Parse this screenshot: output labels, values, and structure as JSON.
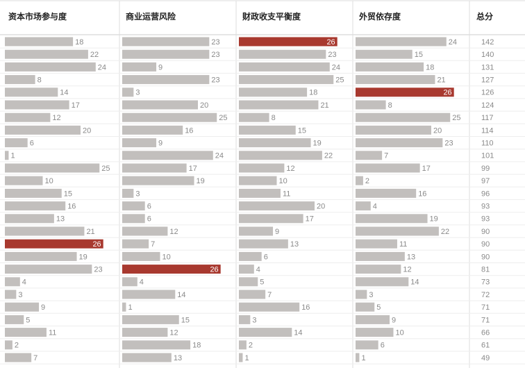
{
  "chart_data": {
    "type": "bar",
    "bar_color": "#c2bfbd",
    "highlight_color": "#a8392f",
    "series": [
      {
        "name": "资本市场参与度",
        "values": [
          18,
          22,
          24,
          8,
          14,
          17,
          12,
          20,
          6,
          1,
          25,
          10,
          15,
          16,
          13,
          21,
          26,
          19,
          23,
          4,
          3,
          9,
          5,
          11,
          2,
          7
        ]
      },
      {
        "name": "商业运营风险",
        "values": [
          23,
          23,
          9,
          23,
          3,
          20,
          25,
          16,
          9,
          24,
          17,
          19,
          3,
          6,
          6,
          12,
          7,
          10,
          26,
          4,
          14,
          1,
          15,
          12,
          18,
          13
        ]
      },
      {
        "name": "财政收支平衡度",
        "values": [
          26,
          23,
          24,
          25,
          18,
          21,
          8,
          15,
          19,
          22,
          12,
          10,
          11,
          20,
          17,
          9,
          13,
          6,
          4,
          5,
          7,
          16,
          3,
          14,
          2,
          1
        ]
      },
      {
        "name": "外贸依存度",
        "values": [
          24,
          15,
          18,
          21,
          26,
          8,
          25,
          20,
          23,
          7,
          17,
          2,
          16,
          4,
          19,
          22,
          11,
          13,
          12,
          14,
          3,
          5,
          9,
          10,
          6,
          1
        ]
      }
    ],
    "total": {
      "name": "总分",
      "values": [
        142,
        140,
        131,
        127,
        126,
        124,
        117,
        114,
        110,
        101,
        99,
        97,
        96,
        93,
        93,
        90,
        90,
        90,
        81,
        73,
        72,
        71,
        71,
        66,
        61,
        49
      ]
    }
  }
}
